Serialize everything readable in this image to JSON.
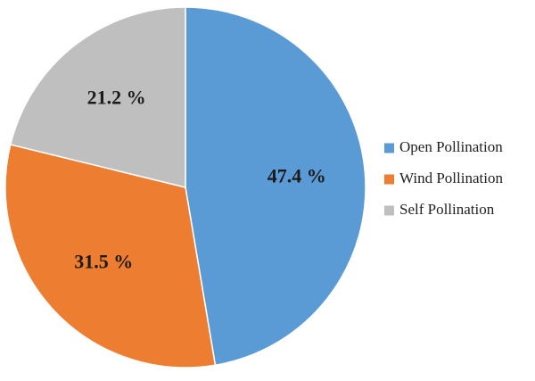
{
  "chart_data": {
    "type": "pie",
    "title": "",
    "start_angle_deg": 0,
    "direction": "clockwise",
    "legend_position": "right",
    "slices": [
      {
        "name": "Open Pollination",
        "value": 47.4,
        "label": "47.4 %",
        "color": "#5b9bd5"
      },
      {
        "name": "Wind Pollination",
        "value": 31.5,
        "label": "31.5 %",
        "color": "#ed7d31"
      },
      {
        "name": "Self Pollination",
        "value": 21.2,
        "label": "21.2 %",
        "color": "#bfbfbf"
      }
    ]
  }
}
